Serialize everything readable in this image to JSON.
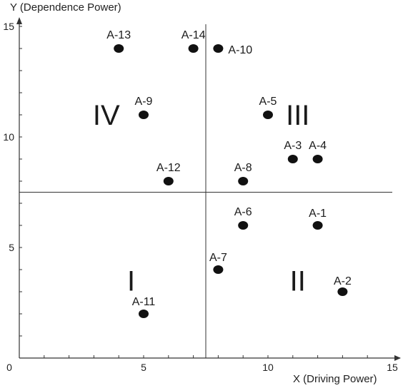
{
  "chart_data": {
    "type": "scatter",
    "title": "",
    "xlabel": "X (Driving Power)",
    "ylabel": "Y (Dependence Power)",
    "xlim": [
      0,
      15
    ],
    "ylim": [
      0,
      15
    ],
    "x_ticks": [
      0,
      5,
      10,
      15
    ],
    "y_ticks": [
      5,
      10,
      15
    ],
    "grid": false,
    "dividers": {
      "x": 7.5,
      "y": 7.5
    },
    "points": [
      {
        "label": "A-1",
        "x": 12,
        "y": 6
      },
      {
        "label": "A-2",
        "x": 13,
        "y": 3
      },
      {
        "label": "A-3",
        "x": 11,
        "y": 9
      },
      {
        "label": "A-4",
        "x": 12,
        "y": 9
      },
      {
        "label": "A-5",
        "x": 10,
        "y": 11
      },
      {
        "label": "A-6",
        "x": 9,
        "y": 6
      },
      {
        "label": "A-7",
        "x": 8,
        "y": 4
      },
      {
        "label": "A-8",
        "x": 9,
        "y": 8
      },
      {
        "label": "A-9",
        "x": 5,
        "y": 11
      },
      {
        "label": "A-10",
        "x": 8,
        "y": 14
      },
      {
        "label": "A-11",
        "x": 5,
        "y": 2
      },
      {
        "label": "A-12",
        "x": 6,
        "y": 8
      },
      {
        "label": "A-13",
        "x": 4,
        "y": 14
      },
      {
        "label": "A-14",
        "x": 7,
        "y": 14
      }
    ],
    "quadrant_labels": [
      {
        "text": "I",
        "quadrant": "bottom-left"
      },
      {
        "text": "II",
        "quadrant": "bottom-right"
      },
      {
        "text": "III",
        "quadrant": "top-right"
      },
      {
        "text": "IV",
        "quadrant": "top-left"
      }
    ],
    "marker_color": "#111111"
  }
}
